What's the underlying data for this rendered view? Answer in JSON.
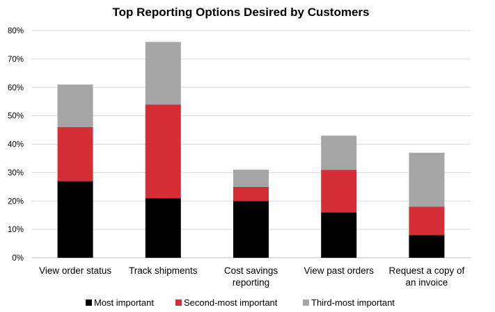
{
  "chart_data": {
    "type": "bar",
    "stacked": true,
    "title": "Top Reporting Options Desired by Customers",
    "xlabel": "",
    "ylabel": "",
    "ylim": [
      0,
      80
    ],
    "yticks": [
      "0%",
      "10%",
      "20%",
      "30%",
      "40%",
      "50%",
      "60%",
      "70%",
      "80%"
    ],
    "grid": true,
    "legend_position": "bottom",
    "categories": [
      [
        "View order status"
      ],
      [
        "Track shipments"
      ],
      [
        "Cost savings",
        "reporting"
      ],
      [
        "View past orders"
      ],
      [
        "Request a copy of",
        "an invoice"
      ]
    ],
    "series": [
      {
        "name": "Most important",
        "color": "#000000",
        "values": [
          27,
          21,
          20,
          16,
          8
        ]
      },
      {
        "name": "Second-most important",
        "color": "#d42f36",
        "values": [
          19,
          33,
          5,
          15,
          10
        ]
      },
      {
        "name": "Third-most important",
        "color": "#a6a6a6",
        "values": [
          15,
          22,
          6,
          12,
          19
        ]
      }
    ]
  }
}
